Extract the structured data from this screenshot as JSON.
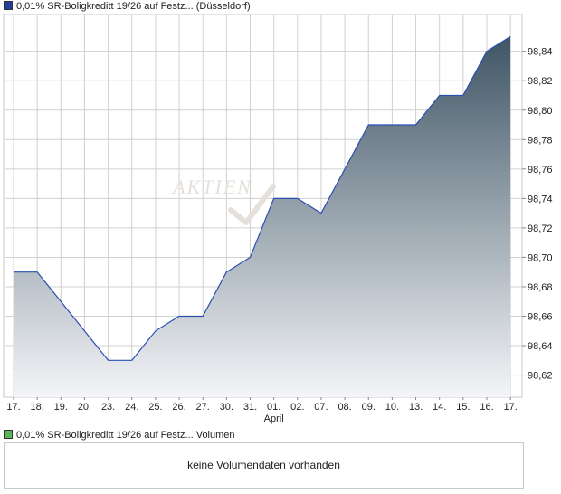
{
  "legend": {
    "price_label": "0,01% SR-Boligkreditt 19/26 auf Festz... (Düsseldorf)",
    "volume_label": "0,01% SR-Boligkreditt 19/26 auf Festz... Volumen"
  },
  "watermark": "AKTIEN",
  "volume_panel": {
    "message": "keine Volumendaten vorhanden"
  },
  "colors": {
    "line": "#2a4fb0",
    "fill_top": "#3f5565",
    "fill_bottom": "#f4f5f8",
    "grid": "#d0d0d0",
    "legend_price": "#1f3f9a",
    "legend_volume": "#5ab55a"
  },
  "chart_data": {
    "type": "area",
    "x": [
      "17.",
      "18.",
      "19.",
      "20.",
      "23.",
      "24.",
      "25.",
      "26.",
      "27.",
      "30.",
      "31.",
      "01.",
      "02.",
      "07.",
      "08.",
      "09.",
      "10.",
      "13.",
      "14.",
      "15.",
      "16.",
      "17."
    ],
    "month_labels": [
      {
        "index": 11,
        "label": "April"
      }
    ],
    "series": [
      {
        "values": [
          98.69,
          98.69,
          98.67,
          98.65,
          98.63,
          98.63,
          98.65,
          98.66,
          98.66,
          98.69,
          98.7,
          98.74,
          98.74,
          98.73,
          98.76,
          98.79,
          98.79,
          98.79,
          98.81,
          98.81,
          98.84,
          98.85
        ]
      }
    ],
    "y_ticks": [
      "98,62",
      "98,64",
      "98,66",
      "98,68",
      "98,70",
      "98,72",
      "98,74",
      "98,76",
      "98,78",
      "98,80",
      "98,82",
      "98,84"
    ],
    "y_tick_values": [
      98.62,
      98.64,
      98.66,
      98.68,
      98.7,
      98.72,
      98.74,
      98.76,
      98.78,
      98.8,
      98.82,
      98.84
    ],
    "ylim": [
      98.605,
      98.865
    ],
    "grid": true,
    "axis_position": "right",
    "title": "",
    "xlabel": "",
    "ylabel": ""
  }
}
